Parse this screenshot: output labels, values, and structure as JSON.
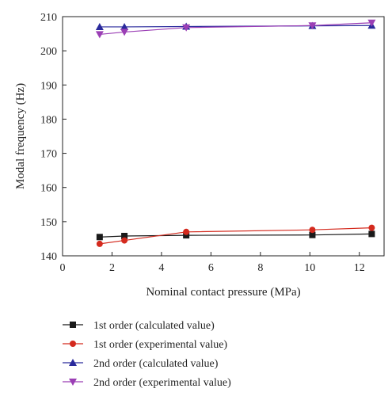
{
  "chart_data": {
    "type": "line",
    "xlabel": "Nominal contact pressure (MPa)",
    "ylabel": "Modal frequency (Hz)",
    "xlim": [
      0,
      13
    ],
    "ylim": [
      140,
      210
    ],
    "xticks": [
      0,
      2,
      4,
      6,
      8,
      10,
      12
    ],
    "yticks": [
      140,
      150,
      160,
      170,
      180,
      190,
      200,
      210
    ],
    "xtick_labels": [
      "0",
      "2",
      "4",
      "6",
      "8",
      "10",
      "12"
    ],
    "ytick_labels": [
      "140",
      "150",
      "160",
      "170",
      "180",
      "190",
      "200",
      "210"
    ],
    "grid": false,
    "legend_position": "below",
    "series": [
      {
        "name": "1st order (calculated value)",
        "color": "#1a1a1a",
        "marker": "square",
        "x": [
          1.5,
          2.5,
          5.0,
          10.1,
          12.5
        ],
        "y": [
          145.5,
          145.8,
          146.0,
          146.1,
          146.4
        ]
      },
      {
        "name": "1st order (experimental value)",
        "color": "#d42a1e",
        "marker": "circle",
        "x": [
          1.5,
          2.5,
          5.0,
          10.1,
          12.5
        ],
        "y": [
          143.5,
          144.5,
          147.0,
          147.6,
          148.2
        ]
      },
      {
        "name": "2nd order (calculated value)",
        "color": "#2a2a9c",
        "marker": "triangle-up",
        "x": [
          1.5,
          2.5,
          5.0,
          10.1,
          12.5
        ],
        "y": [
          207.0,
          207.0,
          207.1,
          207.3,
          207.4
        ]
      },
      {
        "name": "2nd order (experimental value)",
        "color": "#9b3fb5",
        "marker": "triangle-down",
        "x": [
          1.5,
          2.5,
          5.0,
          10.1,
          12.5
        ],
        "y": [
          204.8,
          205.5,
          206.8,
          207.4,
          208.2
        ]
      }
    ]
  }
}
